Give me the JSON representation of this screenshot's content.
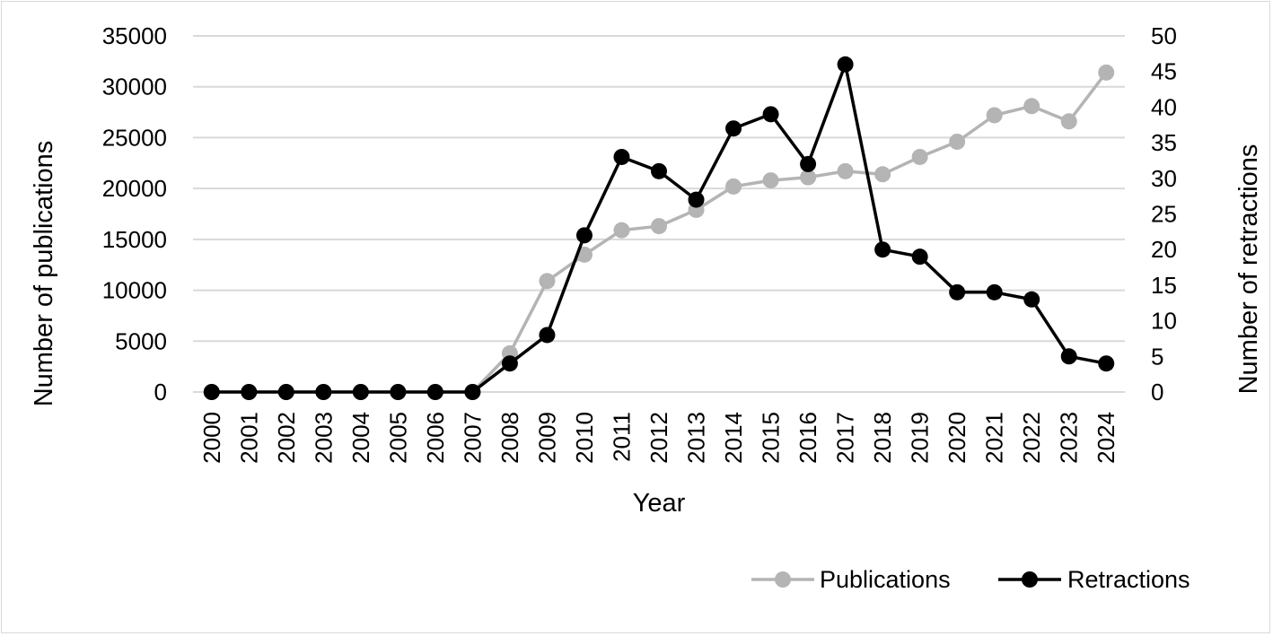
{
  "chart_data": {
    "type": "line",
    "x": [
      "2000",
      "2001",
      "2002",
      "2003",
      "2004",
      "2005",
      "2006",
      "2007",
      "2008",
      "2009",
      "2010",
      "2011",
      "2012",
      "2013",
      "2014",
      "2015",
      "2016",
      "2017",
      "2018",
      "2019",
      "2020",
      "2021",
      "2022",
      "2023",
      "2024"
    ],
    "xlabel": "Year",
    "ylabel": "Number of publications",
    "y2label": "Number of retractions",
    "ylim": [
      0,
      35000
    ],
    "y2lim": [
      0,
      50
    ],
    "yticks": [
      "0",
      "5000",
      "10000",
      "15000",
      "20000",
      "25000",
      "30000",
      "35000"
    ],
    "y2ticks": [
      "0",
      "5",
      "10",
      "15",
      "20",
      "25",
      "30",
      "35",
      "40",
      "45",
      "50"
    ],
    "grid": true,
    "legend_position": "bottom-right",
    "series": [
      {
        "name": "Publications",
        "axis": "left",
        "color": "#b4b4b4",
        "values": [
          0,
          0,
          0,
          0,
          0,
          0,
          0,
          0,
          3800,
          10900,
          13500,
          15900,
          16300,
          17900,
          20200,
          20800,
          21100,
          21700,
          21400,
          23100,
          24600,
          27200,
          28100,
          26600,
          31400
        ]
      },
      {
        "name": "Retractions",
        "axis": "right",
        "color": "#000000",
        "values": [
          0,
          0,
          0,
          0,
          0,
          0,
          0,
          0,
          4,
          8,
          22,
          33,
          31,
          27,
          37,
          39,
          32,
          46,
          20,
          19,
          14,
          14,
          13,
          5,
          4
        ]
      }
    ]
  }
}
